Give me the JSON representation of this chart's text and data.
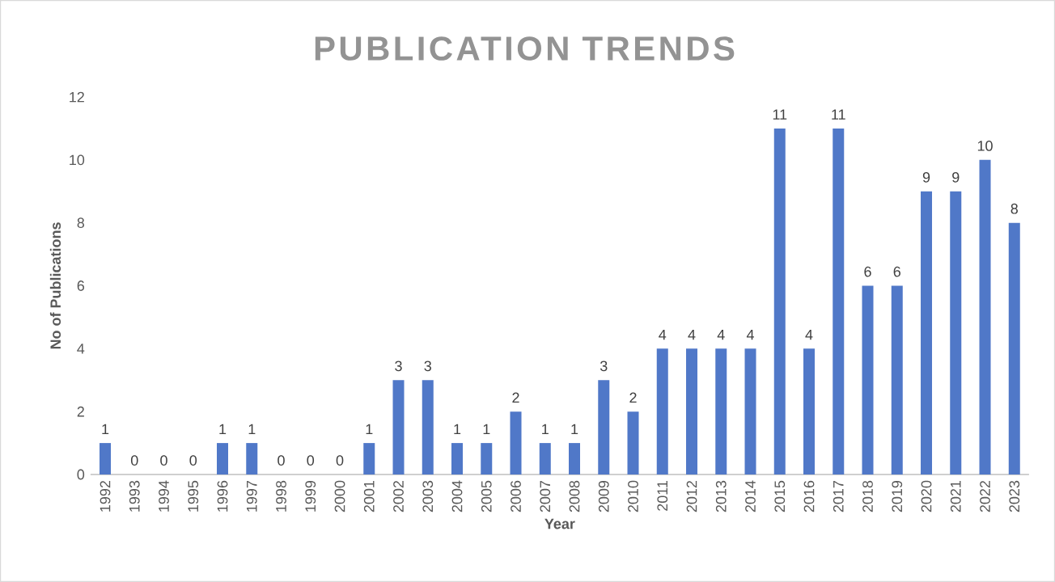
{
  "chart_data": {
    "type": "bar",
    "title": "PUBLICATION TRENDS",
    "xlabel": "Year",
    "ylabel": "No of Publications",
    "categories": [
      "1992",
      "1993",
      "1994",
      "1995",
      "1996",
      "1997",
      "1998",
      "1999",
      "2000",
      "2001",
      "2002",
      "2003",
      "2004",
      "2005",
      "2006",
      "2007",
      "2008",
      "2009",
      "2010",
      "2011",
      "2012",
      "2013",
      "2014",
      "2015",
      "2016",
      "2017",
      "2018",
      "2019",
      "2020",
      "2021",
      "2022",
      "2023"
    ],
    "values": [
      1,
      0,
      0,
      0,
      1,
      1,
      0,
      0,
      0,
      1,
      3,
      3,
      1,
      1,
      2,
      1,
      1,
      3,
      2,
      4,
      4,
      4,
      4,
      11,
      4,
      11,
      6,
      6,
      9,
      9,
      10,
      8
    ],
    "color": "#5078c8",
    "ylim": [
      0,
      12
    ],
    "yticks": [
      0,
      2,
      4,
      6,
      8,
      10,
      12
    ],
    "data_labels": true
  }
}
